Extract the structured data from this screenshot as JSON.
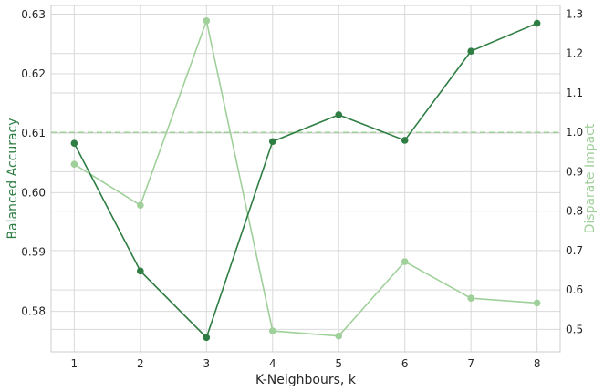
{
  "chart_data": {
    "type": "line",
    "x": [
      1,
      2,
      3,
      4,
      5,
      6,
      7,
      8
    ],
    "xlabel": "K-Neighbours, k",
    "xticks": [
      "1",
      "2",
      "3",
      "4",
      "5",
      "6",
      "7",
      "8"
    ],
    "xlim": [
      0.65,
      8.35
    ],
    "grid": true,
    "series": [
      {
        "axis": "left",
        "color": "#2e7d43",
        "values": [
          0.6083,
          0.5868,
          0.5756,
          0.6086,
          0.6131,
          0.6088,
          0.6238,
          0.6285
        ]
      },
      {
        "axis": "right",
        "color": "#a0d09a",
        "values": [
          0.919,
          0.815,
          1.283,
          0.496,
          0.483,
          0.672,
          0.579,
          0.567
        ]
      }
    ],
    "left_axis": {
      "label": "Balanced Accuracy",
      "color": "#2e7d43",
      "ylim": [
        0.5732,
        0.6315
      ],
      "ticks": [
        0.58,
        0.59,
        0.6,
        0.61,
        0.62,
        0.63
      ],
      "tick_labels": [
        "0.58",
        "0.59",
        "0.60",
        "0.61",
        "0.62",
        "0.63"
      ]
    },
    "right_axis": {
      "label": "Disparate Impact",
      "color": "#a0d09a",
      "ylim": [
        0.443,
        1.322
      ],
      "ticks": [
        0.5,
        0.6,
        0.7,
        0.8,
        0.9,
        1.0,
        1.1,
        1.2,
        1.3
      ],
      "tick_labels": [
        "0.5",
        "0.6",
        "0.7",
        "0.8",
        "0.9",
        "1.0",
        "1.1",
        "1.2",
        "1.3"
      ]
    },
    "reference_lines": [
      {
        "axis": "right",
        "value": 1.0,
        "style": "dashed",
        "color": "#a0d09a"
      }
    ]
  }
}
